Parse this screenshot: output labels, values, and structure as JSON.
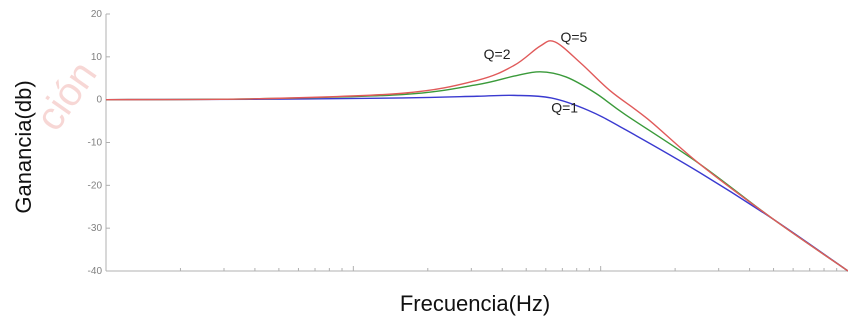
{
  "watermark_text": "ción",
  "chart_data": {
    "type": "line",
    "xlabel": "Frecuencia(Hz)",
    "ylabel": "Ganancia(db)",
    "ylim": [
      -40,
      20
    ],
    "xlim": [
      0,
      1
    ],
    "x_scale": "log",
    "yticks": [
      "20",
      "10",
      "0",
      "-10",
      "-20",
      "-30",
      "-40"
    ],
    "ytick_values": [
      20,
      10,
      0,
      -10,
      -20,
      -30,
      -40
    ],
    "grid": false,
    "series": [
      {
        "name": "Q=1",
        "color": "#3a3ad0",
        "x": [
          0,
          0.2,
          0.4,
          0.5,
          0.55,
          0.6,
          0.65,
          0.7,
          0.8,
          0.9,
          1.0
        ],
        "y": [
          0,
          0.1,
          0.4,
          0.8,
          1.0,
          0.4,
          -2.5,
          -7,
          -17,
          -28,
          -40
        ]
      },
      {
        "name": "Q=2",
        "color": "#3a9a3a",
        "x": [
          0,
          0.2,
          0.4,
          0.5,
          0.55,
          0.585,
          0.62,
          0.66,
          0.7,
          0.8,
          0.9,
          1.0
        ],
        "y": [
          0,
          0.2,
          1.2,
          3.5,
          5.5,
          6.5,
          5.3,
          1.5,
          -3.5,
          -15,
          -28,
          -40
        ]
      },
      {
        "name": "Q=5",
        "color": "#e05a5a",
        "x": [
          0,
          0.2,
          0.4,
          0.5,
          0.55,
          0.585,
          0.605,
          0.64,
          0.68,
          0.73,
          0.8,
          0.9,
          1.0
        ],
        "y": [
          0,
          0.2,
          1.5,
          4.5,
          8,
          12.5,
          13.5,
          8.5,
          2,
          -4.5,
          -15,
          -28,
          -40
        ]
      }
    ],
    "series_labels": [
      {
        "text": "Q=5",
        "x": 0.6125,
        "y": 13.5
      },
      {
        "text": "Q=2",
        "x": 0.509,
        "y": 9.5
      },
      {
        "text": "Q=1",
        "x": 0.6,
        "y": -3
      }
    ]
  }
}
